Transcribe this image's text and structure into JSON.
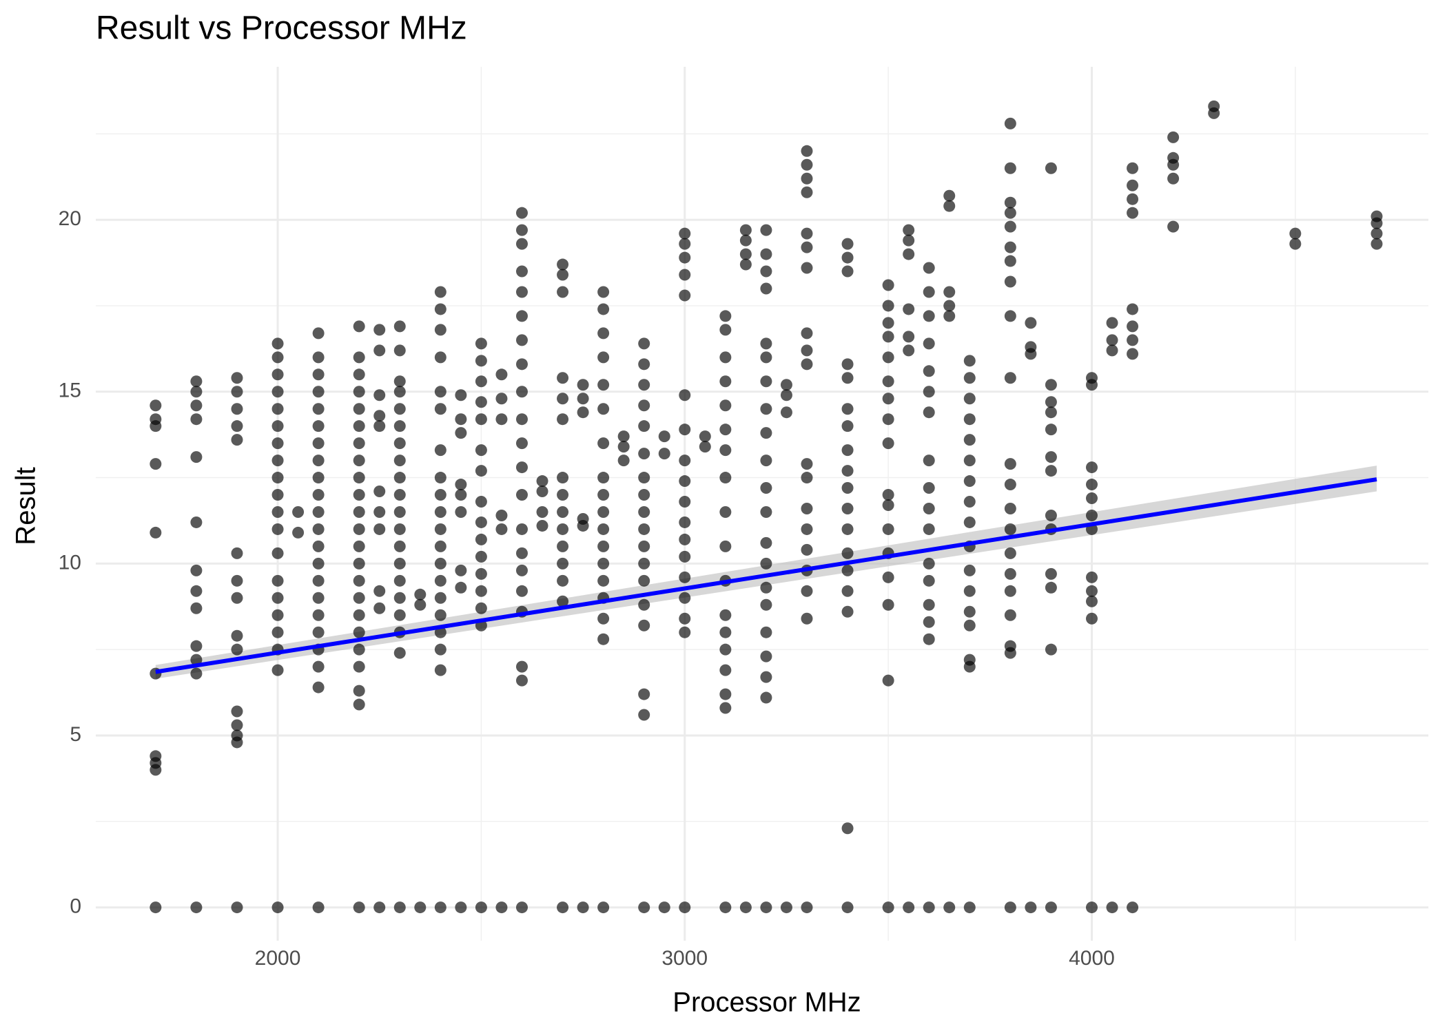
{
  "chart_data": {
    "type": "scatter",
    "title": "Result vs Processor MHz",
    "x_label": "Processor MHz",
    "y_label": "Result",
    "xlim": [
      1553,
      4827
    ],
    "ylim": [
      -0.97,
      24.45
    ],
    "xticks": [
      2000,
      3000,
      4000
    ],
    "yticks": [
      0,
      5,
      10,
      15,
      20
    ],
    "x_minor_ticks": [
      2500,
      3500,
      4500
    ],
    "y_minor_ticks": [
      2.5,
      7.5,
      12.5,
      17.5,
      22.5
    ],
    "grid": true,
    "point_color": "#000000",
    "trend": {
      "color": "#0000ff",
      "band_color": "#bdbdbd",
      "x": [
        1700,
        4700
      ],
      "y": [
        6.85,
        12.45
      ],
      "lower": [
        6.65,
        12.1
      ],
      "upper": [
        7.05,
        12.85
      ]
    },
    "columns": [
      {
        "x": 1700,
        "y": [
          0,
          4.0,
          4.2,
          4.4,
          6.8,
          10.9,
          12.9,
          14.0,
          14.2,
          14.6
        ]
      },
      {
        "x": 1800,
        "y": [
          0,
          6.8,
          7.2,
          7.6,
          8.7,
          9.2,
          9.8,
          11.2,
          13.1,
          14.2,
          14.6,
          15.0,
          15.3
        ]
      },
      {
        "x": 1900,
        "y": [
          0,
          4.8,
          5.0,
          5.3,
          5.7,
          7.5,
          7.9,
          9.0,
          9.5,
          10.3,
          13.6,
          14.0,
          14.5,
          15.0,
          15.4
        ]
      },
      {
        "x": 2000,
        "y": [
          0,
          6.9,
          7.5,
          8.0,
          8.5,
          9.0,
          9.5,
          10.3,
          11.0,
          11.5,
          12.0,
          12.5,
          13.0,
          13.5,
          14.0,
          14.5,
          15.0,
          15.5,
          16.0,
          16.4
        ]
      },
      {
        "x": 2050,
        "y": [
          10.9,
          11.5
        ]
      },
      {
        "x": 2100,
        "y": [
          0,
          6.4,
          7.0,
          7.5,
          8.0,
          8.5,
          9.0,
          9.5,
          10,
          10.5,
          11,
          11.5,
          12,
          12.5,
          13,
          13.5,
          14,
          14.5,
          15,
          15.5,
          16,
          16.7
        ]
      },
      {
        "x": 2200,
        "y": [
          0,
          5.9,
          6.3,
          7.0,
          7.5,
          8,
          8.5,
          9,
          9.5,
          10,
          10.5,
          11,
          11.5,
          12,
          12.5,
          13,
          13.5,
          14,
          14.5,
          15,
          15.5,
          16,
          16.9
        ]
      },
      {
        "x": 2250,
        "y": [
          0,
          8.7,
          9.2,
          11.0,
          11.5,
          12.1,
          14.0,
          14.3,
          14.9,
          16.2,
          16.8
        ]
      },
      {
        "x": 2300,
        "y": [
          0,
          7.4,
          8,
          8.5,
          9,
          9.5,
          10,
          10.5,
          11,
          11.5,
          12,
          12.5,
          13,
          13.5,
          14,
          14.5,
          15,
          15.3,
          16.2,
          16.9
        ]
      },
      {
        "x": 2350,
        "y": [
          0,
          8.8,
          9.1
        ]
      },
      {
        "x": 2400,
        "y": [
          0,
          6.9,
          7.5,
          8,
          8.5,
          9,
          9.5,
          10,
          10.5,
          11,
          11.5,
          12,
          12.5,
          13.3,
          14.5,
          15.0,
          16.0,
          16.8,
          17.4,
          17.9
        ]
      },
      {
        "x": 2450,
        "y": [
          0,
          9.3,
          9.8,
          11.5,
          12.0,
          12.3,
          13.8,
          14.2,
          14.9
        ]
      },
      {
        "x": 2500,
        "y": [
          0,
          8.2,
          8.7,
          9.2,
          9.7,
          10.2,
          10.7,
          11.2,
          11.8,
          12.7,
          13.3,
          14.2,
          14.7,
          15.3,
          15.9,
          16.4
        ]
      },
      {
        "x": 2550,
        "y": [
          0,
          11.0,
          11.4,
          14.2,
          14.8,
          15.5
        ]
      },
      {
        "x": 2600,
        "y": [
          0,
          6.6,
          7.0,
          8.6,
          9.2,
          9.8,
          10.3,
          11.0,
          12.0,
          12.8,
          13.5,
          14.2,
          15.0,
          15.8,
          16.5,
          17.2,
          17.9,
          18.5,
          19.3,
          19.7,
          20.2
        ]
      },
      {
        "x": 2650,
        "y": [
          11.1,
          11.5,
          12.1,
          12.4
        ]
      },
      {
        "x": 2700,
        "y": [
          0,
          8.9,
          9.5,
          10,
          10.5,
          11,
          11.5,
          12.0,
          12.5,
          14.2,
          14.8,
          15.4,
          17.9,
          18.4,
          18.7
        ]
      },
      {
        "x": 2750,
        "y": [
          0,
          11.1,
          11.3,
          14.4,
          14.8,
          15.2
        ]
      },
      {
        "x": 2800,
        "y": [
          0,
          7.8,
          8.4,
          9,
          9.5,
          10,
          10.5,
          11,
          11.5,
          12,
          12.5,
          13.5,
          14.5,
          15.2,
          16.0,
          16.7,
          17.4,
          17.9
        ]
      },
      {
        "x": 2850,
        "y": [
          13.0,
          13.4,
          13.7
        ]
      },
      {
        "x": 2900,
        "y": [
          0,
          5.6,
          6.2,
          8.2,
          8.8,
          9.5,
          10,
          10.5,
          11,
          11.5,
          12,
          12.5,
          13.2,
          14,
          14.6,
          15.2,
          15.8,
          16.4
        ]
      },
      {
        "x": 2950,
        "y": [
          0,
          13.2,
          13.7
        ]
      },
      {
        "x": 3000,
        "y": [
          0,
          8.0,
          8.4,
          9,
          9.6,
          10.2,
          10.7,
          11.2,
          11.8,
          12.4,
          13.0,
          13.9,
          14.9,
          17.8,
          18.4,
          18.9,
          19.3,
          19.6
        ]
      },
      {
        "x": 3050,
        "y": [
          13.4,
          13.7
        ]
      },
      {
        "x": 3100,
        "y": [
          0,
          5.8,
          6.2,
          6.9,
          7.5,
          8.0,
          8.5,
          9.5,
          10.5,
          11.5,
          12.5,
          13.3,
          13.9,
          14.6,
          15.3,
          16.0,
          16.8,
          17.2
        ]
      },
      {
        "x": 3150,
        "y": [
          0,
          18.7,
          19.0,
          19.4,
          19.7
        ]
      },
      {
        "x": 3200,
        "y": [
          0,
          6.1,
          6.7,
          7.3,
          8.0,
          8.8,
          9.3,
          10,
          10.6,
          11.5,
          12.2,
          13,
          13.8,
          14.5,
          15.3,
          16.0,
          16.4,
          18,
          18.5,
          19,
          19.7
        ]
      },
      {
        "x": 3250,
        "y": [
          0,
          14.4,
          14.9,
          15.2
        ]
      },
      {
        "x": 3300,
        "y": [
          0,
          8.4,
          9.2,
          9.8,
          10.4,
          11,
          11.6,
          12.5,
          12.9,
          15.8,
          16.2,
          16.7,
          18.6,
          19.2,
          19.6,
          20.8,
          21.2,
          21.6,
          22.0
        ]
      },
      {
        "x": 3400,
        "y": [
          0,
          2.3,
          8.6,
          9.2,
          9.8,
          10.3,
          11,
          11.6,
          12.2,
          12.7,
          13.3,
          14,
          14.5,
          15.4,
          15.8,
          18.5,
          18.9,
          19.3
        ]
      },
      {
        "x": 3500,
        "y": [
          0,
          6.6,
          8.8,
          9.6,
          10.3,
          11.0,
          11.7,
          12.0,
          13.5,
          14.2,
          14.8,
          15.3,
          16,
          16.6,
          17.0,
          17.5,
          18.1
        ]
      },
      {
        "x": 3550,
        "y": [
          0,
          16.2,
          16.6,
          17.4,
          19.0,
          19.4,
          19.7
        ]
      },
      {
        "x": 3600,
        "y": [
          0,
          7.8,
          8.3,
          8.8,
          9.5,
          10,
          11,
          11.6,
          12.2,
          13.0,
          14.4,
          15.0,
          15.6,
          16.4,
          17.2,
          17.9,
          18.6
        ]
      },
      {
        "x": 3650,
        "y": [
          0,
          17.2,
          17.5,
          17.9,
          20.4,
          20.7
        ]
      },
      {
        "x": 3700,
        "y": [
          0,
          7.0,
          7.2,
          8.2,
          8.6,
          9.2,
          9.8,
          10.5,
          11.2,
          11.8,
          12.4,
          13.0,
          13.6,
          14.2,
          14.8,
          15.4,
          15.9
        ]
      },
      {
        "x": 3800,
        "y": [
          0,
          7.4,
          7.6,
          8.5,
          9.2,
          9.7,
          10.3,
          11,
          11.6,
          12.3,
          12.9,
          15.4,
          17.2,
          18.2,
          18.8,
          19.2,
          19.8,
          20.2,
          20.5,
          21.5,
          22.8
        ]
      },
      {
        "x": 3850,
        "y": [
          0,
          16.1,
          16.3,
          17.0
        ]
      },
      {
        "x": 3900,
        "y": [
          0,
          7.5,
          9.3,
          9.7,
          11.0,
          11.4,
          12.7,
          13.1,
          13.9,
          14.4,
          14.7,
          15.2,
          21.5
        ]
      },
      {
        "x": 4000,
        "y": [
          0,
          8.4,
          8.9,
          9.2,
          9.6,
          11.0,
          11.4,
          11.9,
          12.3,
          12.8,
          15.2,
          15.4
        ]
      },
      {
        "x": 4050,
        "y": [
          0,
          16.2,
          16.5,
          17.0
        ]
      },
      {
        "x": 4100,
        "y": [
          0,
          16.1,
          16.5,
          16.9,
          17.4,
          20.2,
          20.6,
          21.0,
          21.5
        ]
      },
      {
        "x": 4200,
        "y": [
          19.8,
          21.2,
          21.6,
          21.8,
          22.4
        ]
      },
      {
        "x": 4300,
        "y": [
          23.1,
          23.3
        ]
      },
      {
        "x": 4500,
        "y": [
          19.3,
          19.6
        ]
      },
      {
        "x": 4700,
        "y": [
          19.3,
          19.6,
          19.9,
          20.1
        ]
      }
    ]
  }
}
